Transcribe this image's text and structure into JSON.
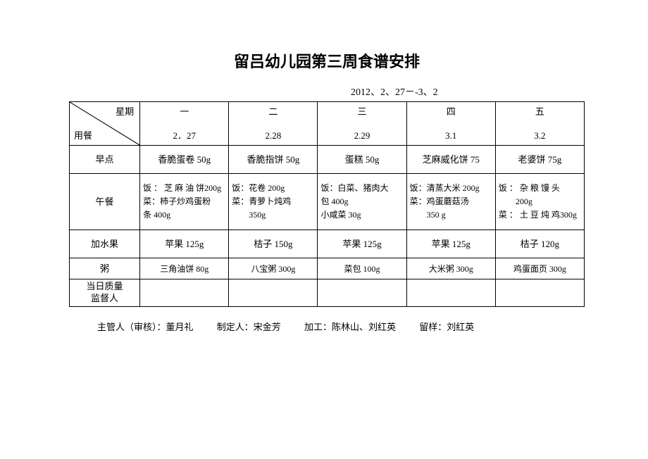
{
  "title": "留吕幼儿园第三周食谱安排",
  "date_range": "2012、2、27－-3、2",
  "diag": {
    "top": "星期",
    "bottom": "用餐"
  },
  "days": [
    {
      "weekday": "一",
      "date": "2．27"
    },
    {
      "weekday": "二",
      "date": "2.28"
    },
    {
      "weekday": "三",
      "date": "2.29"
    },
    {
      "weekday": "四",
      "date": "3.1"
    },
    {
      "weekday": "五",
      "date": "3.2"
    }
  ],
  "rows": {
    "breakfast": {
      "label": "早点",
      "cells": [
        "香脆蛋卷 50g",
        "香脆指饼 50g",
        "蛋糕 50g",
        "芝麻威化饼 75",
        "老婆饼 75g"
      ]
    },
    "lunch": {
      "label": "午餐",
      "cells": [
        "饭 ： 芝 麻 油 饼200g\n菜：柿子炒鸡蛋粉条 400g",
        "饭：花卷 200g\n菜：青萝卜炖鸡\n　　350g",
        "饭：白菜、猪肉大包 400g\n小咸菜 30g",
        "饭：清蒸大米 200g\n菜：鸡蛋蘑菇汤\n　　350 g",
        "饭 ： 杂 粮 馒 头\n　　200g\n菜 ： 土 豆 炖 鸡300g"
      ]
    },
    "fruit": {
      "label": "加水果",
      "cells": [
        "苹果 125g",
        "桔子 150g",
        "苹果 125g",
        "苹果 125g",
        "桔子 120g"
      ]
    },
    "porridge": {
      "label": "粥",
      "cells": [
        "三角油饼 80g",
        "八宝粥 300g",
        "菜包 100g",
        "大米粥 300g",
        "鸡蛋面页 300g"
      ]
    },
    "qc": {
      "label": "当日质量\n监督人",
      "cells": [
        "",
        "",
        "",
        "",
        ""
      ]
    }
  },
  "footer": {
    "supervisor": "主管人（审核）：董月礼",
    "author": "制定人：宋金芳",
    "process": "加工：陈林山、刘红英",
    "sample": "留样：刘红英"
  },
  "colors": {
    "text": "#000000",
    "background": "#ffffff",
    "border": "#000000"
  }
}
